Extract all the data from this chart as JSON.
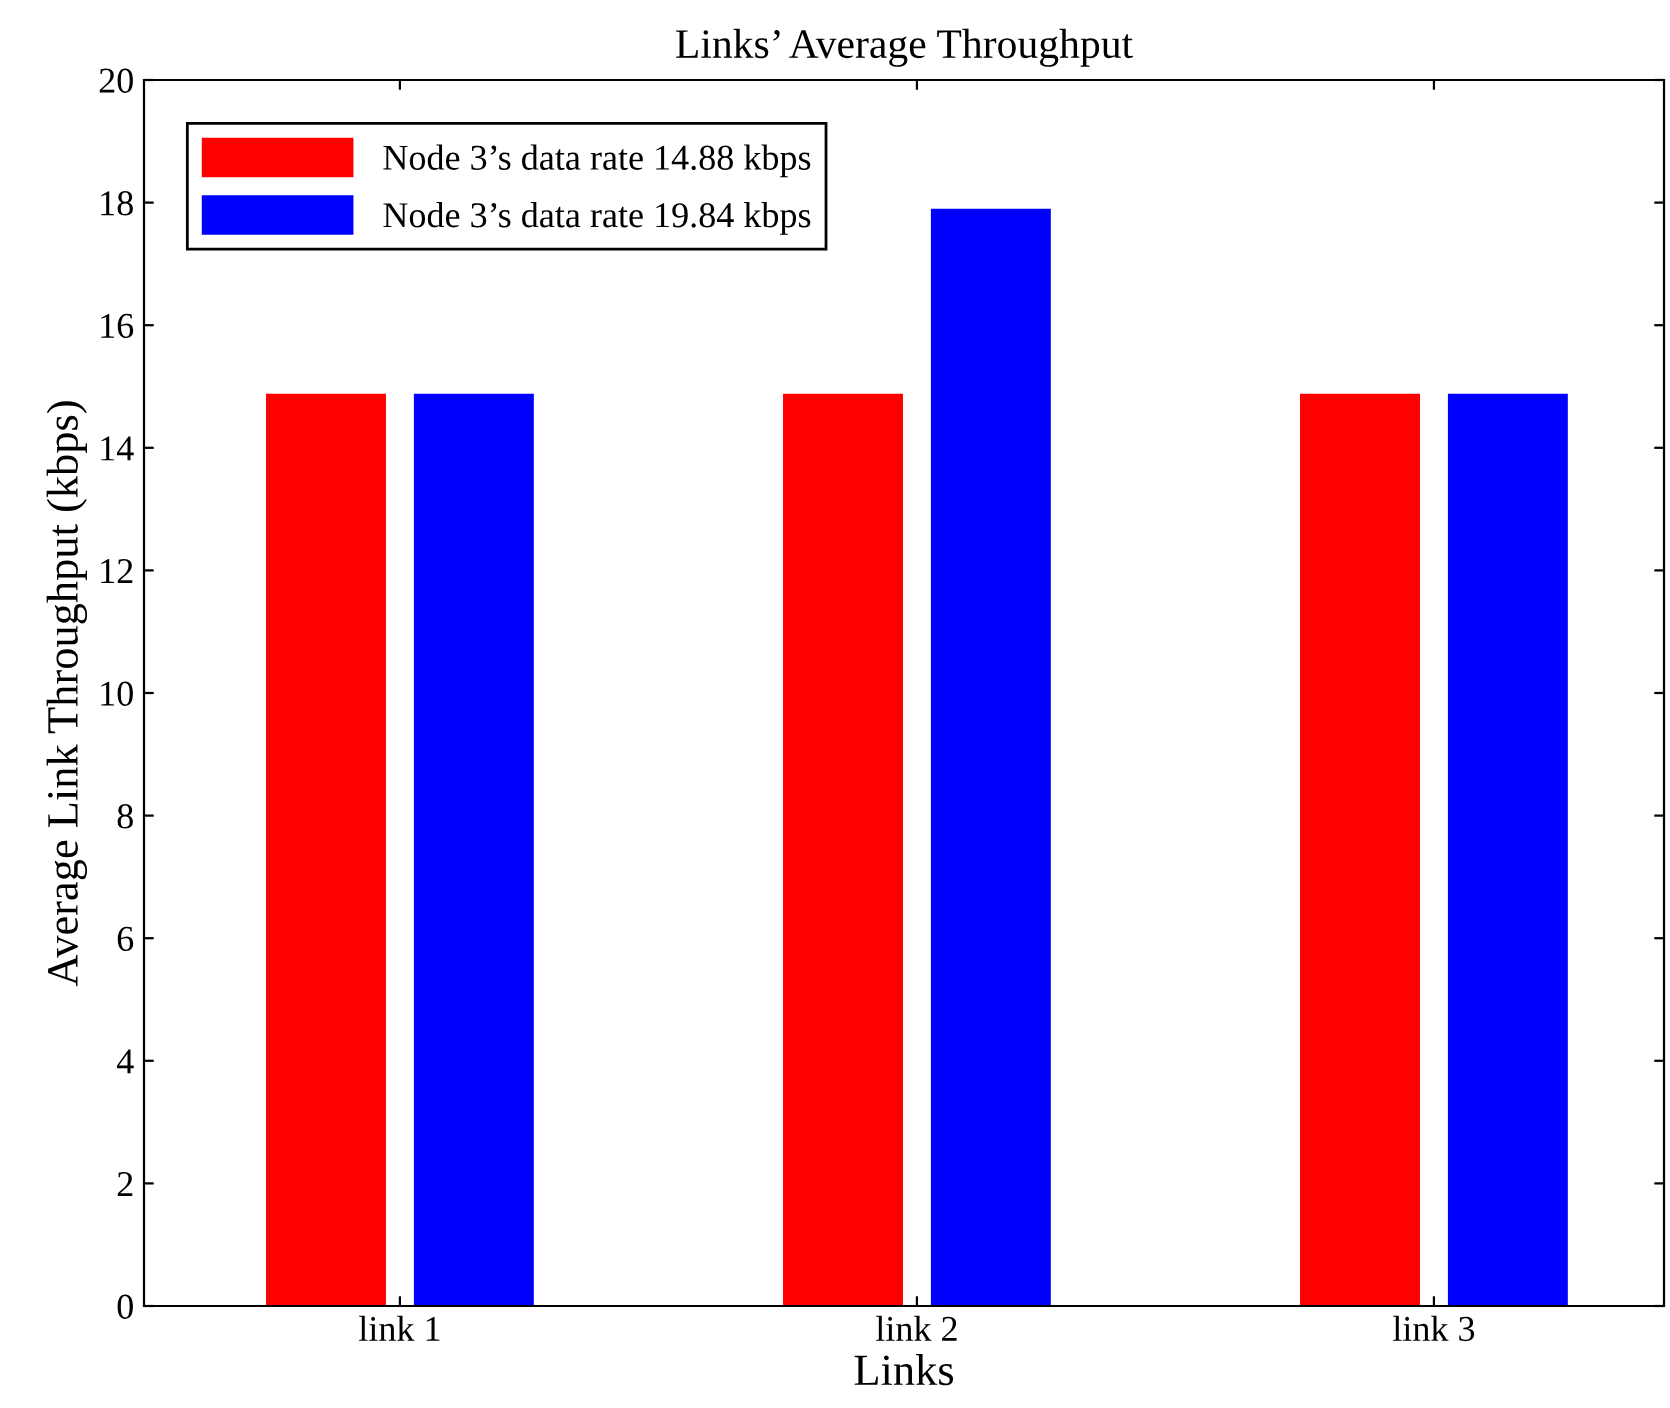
{
  "chart_data": {
    "type": "bar",
    "title": "Links’ Average Throughput",
    "xlabel": "Links",
    "ylabel": "Average Link Throughput (kbps)",
    "categories": [
      "link 1",
      "link 2",
      "link 3"
    ],
    "series": [
      {
        "name": "Node 3’s data rate 14.88 kbps",
        "color": "#ff0000",
        "values": [
          14.88,
          14.88,
          14.88
        ]
      },
      {
        "name": "Node 3’s data rate 19.84 kbps",
        "color": "#0000ff",
        "values": [
          14.88,
          17.9,
          14.88
        ]
      }
    ],
    "ylim": [
      0,
      20
    ],
    "yticks": [
      0,
      2,
      4,
      6,
      8,
      10,
      12,
      14,
      16,
      18,
      20
    ],
    "grid": false,
    "legend": "top left"
  }
}
